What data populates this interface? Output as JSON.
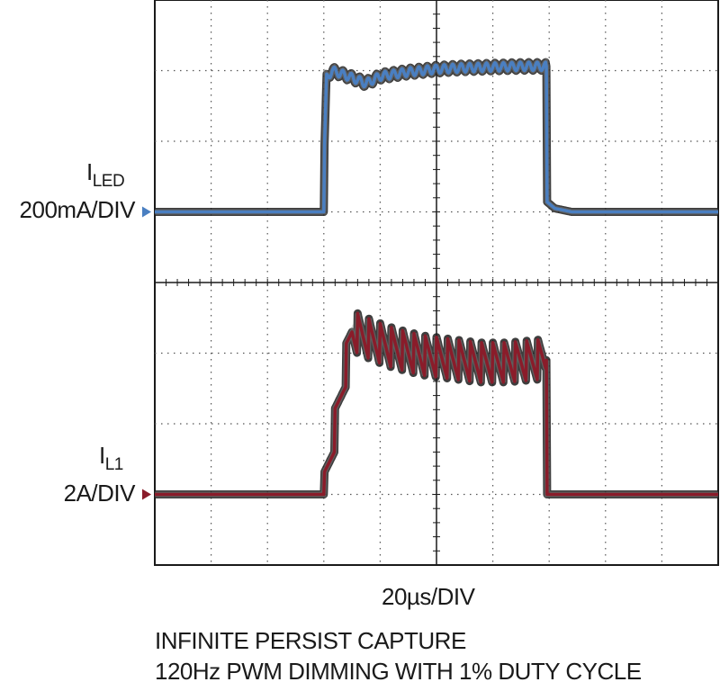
{
  "chart_data": {
    "type": "line",
    "title": "",
    "grid": true,
    "xlabel": "20µs/DIV",
    "x_unit": "µs",
    "x_per_division": 20,
    "xlim": [
      0,
      200
    ],
    "caption": [
      "INFINITE PERSIST CAPTURE",
      "120Hz PWM DIMMING WITH 1% DUTY CYCLE"
    ],
    "series": [
      {
        "key": "iled",
        "name_main": "I",
        "name_sub": "LED",
        "scale": "200mA/DIV",
        "color": "#4a7fc1",
        "band_color": "#1c1c1c",
        "ylim": [
          -1,
          3
        ],
        "ground_marker_division": 0,
        "points": [
          [
            0,
            0
          ],
          [
            60,
            0
          ],
          [
            60,
            0.6
          ],
          [
            61,
            1.9
          ],
          [
            63,
            2.0
          ],
          [
            70,
            1.9
          ],
          [
            75,
            1.82
          ],
          [
            80,
            1.92
          ],
          [
            85,
            1.95
          ],
          [
            90,
            1.98
          ],
          [
            95,
            2.0
          ],
          [
            100,
            2.02
          ],
          [
            110,
            2.04
          ],
          [
            120,
            2.05
          ],
          [
            130,
            2.06
          ],
          [
            139,
            2.06
          ],
          [
            139,
            0.15
          ],
          [
            142,
            0.05
          ],
          [
            148,
            0.0
          ],
          [
            200,
            0.0
          ]
        ],
        "ripple_amplitude": 0.06,
        "ripple_period": 3
      },
      {
        "key": "il1",
        "name_main": "I",
        "name_sub": "L1",
        "scale": "2A/DIV",
        "color": "#8a1c2a",
        "band_color": "#1c1c1c",
        "ylim": [
          -1,
          3
        ],
        "ground_marker_division": 0,
        "points": [
          [
            0,
            0
          ],
          [
            60,
            0
          ],
          [
            70,
            2.3
          ],
          [
            78,
            2.15
          ],
          [
            85,
            2.05
          ],
          [
            95,
            1.95
          ],
          [
            105,
            1.9
          ],
          [
            115,
            1.85
          ],
          [
            125,
            1.85
          ],
          [
            139,
            1.9
          ],
          [
            139,
            0.0
          ],
          [
            200,
            0.0
          ]
        ],
        "ripple_amplitude": 0.3,
        "ripple_period": 4
      }
    ]
  }
}
